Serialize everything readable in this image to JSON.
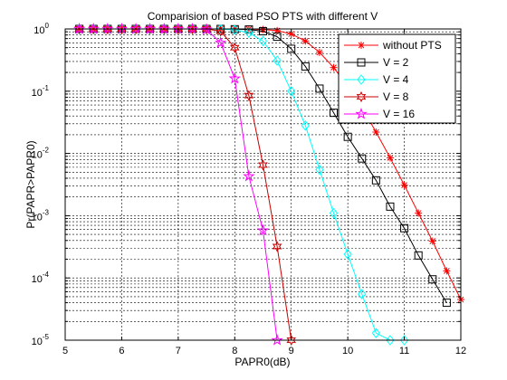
{
  "chart_data": {
    "type": "line",
    "title": "Comparision of based PSO PTS with different V",
    "xlabel": "PAPR0(dB)",
    "ylabel": "Pr(PAPR>PAPR0)",
    "xlim": [
      5,
      12
    ],
    "ylim": [
      1e-05,
      1
    ],
    "yscale": "log",
    "grid": true,
    "x_ticks": [
      "5",
      "6",
      "7",
      "8",
      "9",
      "10",
      "11",
      "12"
    ],
    "y_tick_labels": [
      {
        "base": "10",
        "exp": "0"
      },
      {
        "base": "10",
        "exp": "-1"
      },
      {
        "base": "10",
        "exp": "-2"
      },
      {
        "base": "10",
        "exp": "-3"
      },
      {
        "base": "10",
        "exp": "-4"
      },
      {
        "base": "10",
        "exp": "-5"
      }
    ],
    "legend_position": "top-right",
    "series": [
      {
        "name": "without PTS",
        "color": "#ff0000",
        "marker": "asterisk",
        "x": [
          5.25,
          5.5,
          5.75,
          6.0,
          6.25,
          6.5,
          6.75,
          7.0,
          7.25,
          7.5,
          7.75,
          8.0,
          8.25,
          8.5,
          8.75,
          9.0,
          9.25,
          9.5,
          9.75,
          10.0,
          10.25,
          10.5,
          10.75,
          11.0,
          11.25,
          11.5,
          11.75,
          12.0
        ],
        "y": [
          1,
          1,
          1,
          1,
          1,
          1,
          1,
          1,
          1,
          1,
          1,
          1,
          0.995,
          0.98,
          0.94,
          0.83,
          0.64,
          0.42,
          0.24,
          0.12,
          0.055,
          0.022,
          0.0085,
          0.0031,
          0.0011,
          0.00039,
          0.00013,
          4.5e-05
        ]
      },
      {
        "name": "V = 2",
        "color": "#000000",
        "marker": "square",
        "x": [
          5.25,
          5.5,
          5.75,
          6.0,
          6.25,
          6.5,
          6.75,
          7.0,
          7.25,
          7.5,
          7.75,
          8.0,
          8.25,
          8.5,
          8.75,
          9.0,
          9.25,
          9.5,
          9.75,
          10.0,
          10.25,
          10.5,
          10.75,
          11.0,
          11.25,
          11.5,
          11.75
        ],
        "y": [
          1,
          1,
          1,
          1,
          1,
          1,
          1,
          1,
          1,
          1,
          1,
          0.99,
          0.98,
          0.92,
          0.75,
          0.48,
          0.25,
          0.11,
          0.045,
          0.0185,
          0.0083,
          0.0037,
          0.0014,
          0.00063,
          0.00023,
          9.5e-05,
          4e-05
        ]
      },
      {
        "name": "V = 4",
        "color": "#00ffff",
        "marker": "diamond",
        "x": [
          5.25,
          5.5,
          5.75,
          6.0,
          6.25,
          6.5,
          6.75,
          7.0,
          7.25,
          7.5,
          7.75,
          8.0,
          8.25,
          8.5,
          8.75,
          9.0,
          9.25,
          9.5,
          9.75,
          10.0,
          10.25,
          10.5,
          10.75,
          11.0
        ],
        "y": [
          1,
          1,
          1,
          1,
          1,
          1,
          1,
          1,
          1,
          1,
          0.99,
          0.97,
          0.87,
          0.64,
          0.31,
          0.1,
          0.028,
          0.0055,
          0.0011,
          0.00024,
          5.5e-05,
          1.3e-05,
          1e-05,
          1e-05
        ]
      },
      {
        "name": "V = 8",
        "color": "#cc0000",
        "marker": "hexagram",
        "x": [
          5.25,
          5.5,
          5.75,
          6.0,
          6.25,
          6.5,
          6.75,
          7.0,
          7.25,
          7.5,
          7.75,
          8.0,
          8.25,
          8.5,
          8.75,
          9.0
        ],
        "y": [
          1,
          1,
          1,
          1,
          1,
          1,
          1,
          1,
          1,
          1,
          0.92,
          0.5,
          0.085,
          0.0065,
          0.00032,
          1e-05
        ]
      },
      {
        "name": "V = 16",
        "color": "#ff00ff",
        "marker": "pentagram",
        "x": [
          5.25,
          5.5,
          5.75,
          6.0,
          6.25,
          6.5,
          6.75,
          7.0,
          7.25,
          7.5,
          7.75,
          8.0,
          8.25,
          8.5,
          8.75
        ],
        "y": [
          1,
          1,
          1,
          1,
          1,
          1,
          1,
          1,
          1,
          0.98,
          0.6,
          0.16,
          0.0043,
          0.00058,
          1e-05
        ]
      }
    ]
  }
}
